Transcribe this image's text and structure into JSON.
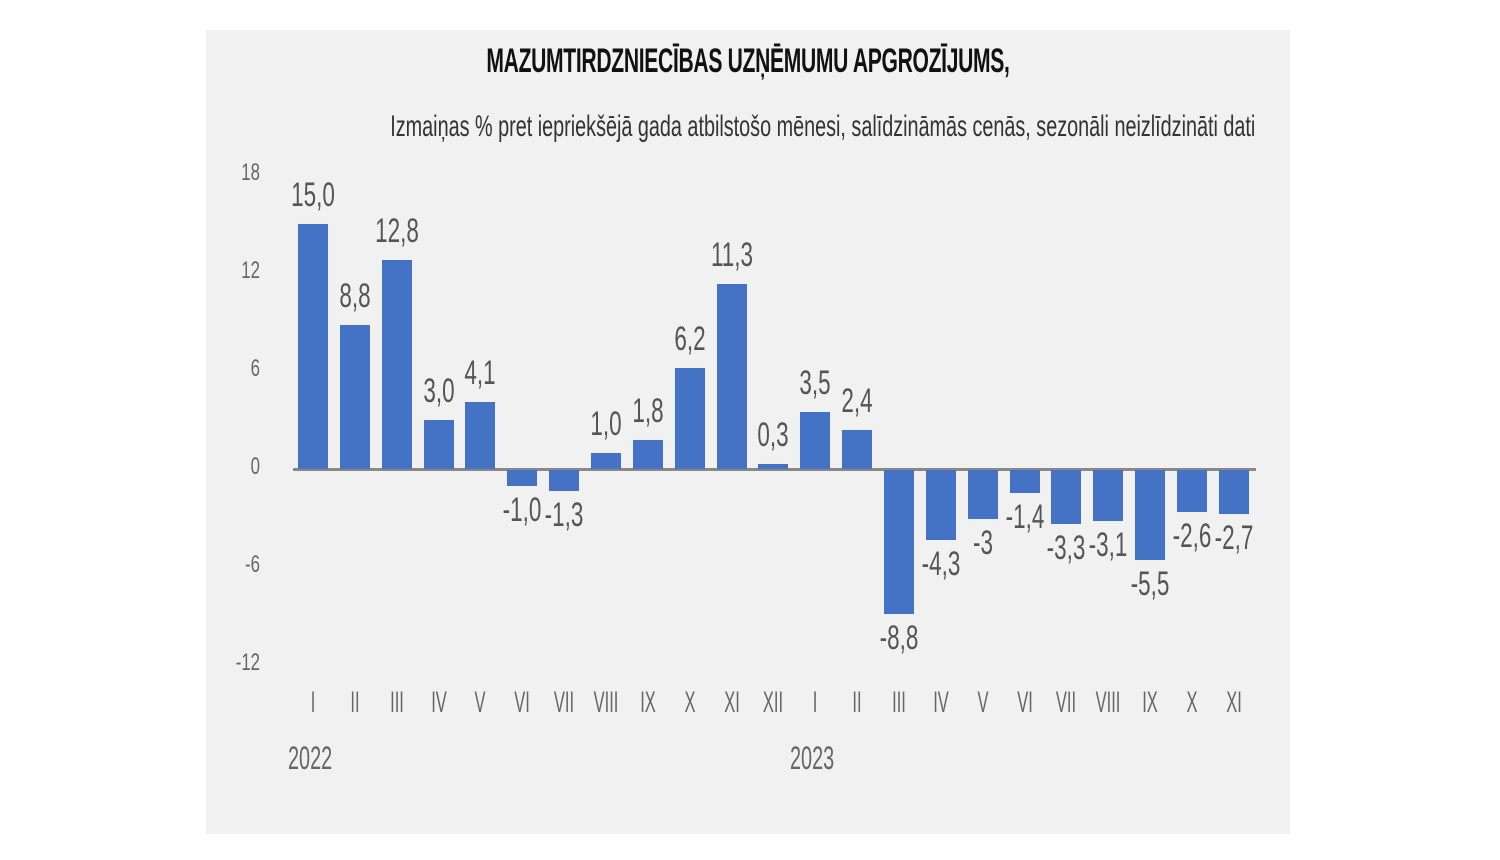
{
  "chart_data": {
    "type": "bar",
    "title": "MAZUMTIRDZNIECĪBAS UZŅĒMUMU APGROZĪJUMS,",
    "subtitle": "Izmaiņas % pret iepriekšējā gada atbilstošo mēnesi, salīdzināmās cenās, sezonāli neizlīdzināti dati",
    "xlabel": "",
    "ylabel": "",
    "ylim": [
      -12,
      18
    ],
    "yticks": [
      18,
      12,
      6,
      0,
      -6,
      -12
    ],
    "ytick_labels": [
      "18",
      "12",
      "6",
      "0",
      "-6",
      "-12"
    ],
    "grid": false,
    "legend": null,
    "bar_color": "#4472c4",
    "years": [
      {
        "label": "2022",
        "start_index": 0
      },
      {
        "label": "2023",
        "start_index": 12
      }
    ],
    "categories": [
      "I",
      "II",
      "III",
      "IV",
      "V",
      "VI",
      "VII",
      "VIII",
      "IX",
      "X",
      "XI",
      "XII",
      "I",
      "II",
      "III",
      "IV",
      "V",
      "VI",
      "VII",
      "VIII",
      "IX",
      "X",
      "XI"
    ],
    "values": [
      15.0,
      8.8,
      12.8,
      3.0,
      4.1,
      -1.0,
      -1.3,
      1.0,
      1.8,
      6.2,
      11.3,
      0.3,
      3.5,
      2.4,
      -8.8,
      -4.3,
      -3.0,
      -1.4,
      -3.3,
      -3.1,
      -5.5,
      -2.6,
      -2.7
    ],
    "value_labels": [
      "15,0",
      "8,8",
      "12,8",
      "3,0",
      "4,1",
      "-1,0",
      "-1,3",
      "1,0",
      "1,8",
      "6,2",
      "11,3",
      "0,3",
      "3,5",
      "2,4",
      "-8,8",
      "-4,3",
      "-3",
      "-1,4",
      "-3,3",
      "-3,1",
      "-5,5",
      "-2,6",
      "-2,7"
    ]
  }
}
